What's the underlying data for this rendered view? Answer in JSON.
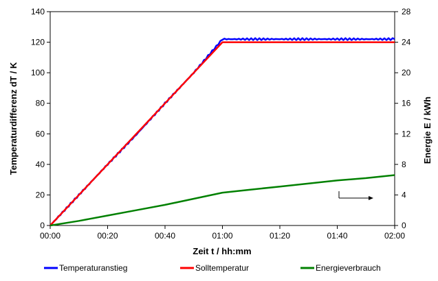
{
  "chart_data": {
    "type": "line",
    "title": "",
    "xlabel": "Zeit t / hh:mm",
    "ylabel": "Temperaturdifferenz dT / K",
    "y2label": "Energie E / kWh",
    "x_ticks": [
      "00:00",
      "00:20",
      "00:40",
      "01:00",
      "01:20",
      "01:40",
      "02:00"
    ],
    "xlim_min": [
      0,
      120
    ],
    "ylim": [
      0,
      140
    ],
    "y_ticks": [
      0,
      20,
      40,
      60,
      80,
      100,
      120,
      140
    ],
    "y2lim": [
      0,
      28
    ],
    "y2_ticks": [
      0,
      4,
      8,
      12,
      16,
      20,
      24,
      28
    ],
    "grid": false,
    "legend_position": "bottom",
    "series": [
      {
        "name": "Temperaturanstieg",
        "axis": "left",
        "color": "#0000ff",
        "x": [
          0,
          10,
          20,
          30,
          40,
          50,
          60,
          70,
          80,
          90,
          100,
          110,
          120
        ],
        "y": [
          0,
          20,
          40,
          59.5,
          80,
          100,
          122,
          122,
          122,
          122,
          122,
          122,
          122
        ]
      },
      {
        "name": "Solltemperatur",
        "axis": "left",
        "color": "#ff0000",
        "x": [
          0,
          60,
          120
        ],
        "y": [
          0,
          120,
          120
        ]
      },
      {
        "name": "Energieverbrauch",
        "axis": "right",
        "color": "#008000",
        "x": [
          0,
          10,
          20,
          30,
          40,
          50,
          60,
          70,
          80,
          90,
          100,
          110,
          120
        ],
        "y": [
          0,
          0.6,
          1.3,
          2.0,
          2.7,
          3.5,
          4.3,
          4.7,
          5.1,
          5.5,
          5.9,
          6.2,
          6.6
        ]
      }
    ],
    "annotations": [
      {
        "type": "arrow",
        "direction": "right",
        "points_to": "right-axis"
      }
    ]
  }
}
